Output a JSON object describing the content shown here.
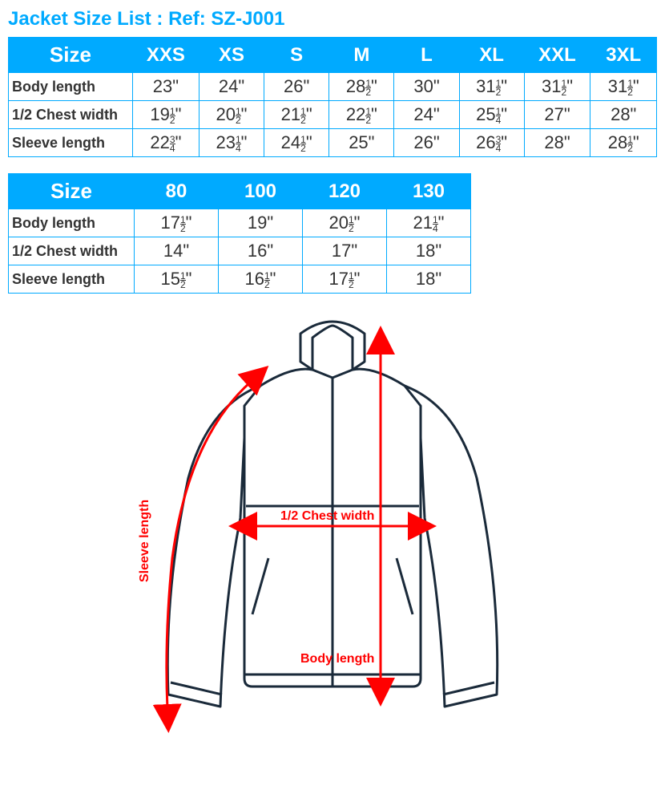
{
  "title": "Jacket Size List :   Ref:  SZ-J001",
  "colors": {
    "accent": "#00aaff",
    "text": "#333333",
    "arrow": "#ff0000",
    "outline": "#1a2a3a",
    "bg": "#ffffff"
  },
  "table1": {
    "size_label": "Size",
    "columns": [
      "XXS",
      "XS",
      "S",
      "M",
      "L",
      "XL",
      "XXL",
      "3XL"
    ],
    "rows": [
      {
        "label": "Body length",
        "cells": [
          {
            "w": "23"
          },
          {
            "w": "24"
          },
          {
            "w": "26"
          },
          {
            "w": "28",
            "f": "1/2"
          },
          {
            "w": "30"
          },
          {
            "w": "31",
            "f": "1/2"
          },
          {
            "w": "31",
            "f": "1/2"
          },
          {
            "w": "31",
            "f": "1/2"
          }
        ]
      },
      {
        "label": "1/2 Chest width",
        "cells": [
          {
            "w": "19",
            "f": "1/2"
          },
          {
            "w": "20",
            "f": "1/2"
          },
          {
            "w": "21",
            "f": "1/2"
          },
          {
            "w": "22",
            "f": "1/2"
          },
          {
            "w": "24"
          },
          {
            "w": "25",
            "f": "1/4"
          },
          {
            "w": "27"
          },
          {
            "w": "28"
          }
        ]
      },
      {
        "label": "Sleeve length",
        "cells": [
          {
            "w": "22",
            "f": "3/4"
          },
          {
            "w": "23",
            "f": "1/4"
          },
          {
            "w": "24",
            "f": "1/2"
          },
          {
            "w": "25"
          },
          {
            "w": "26"
          },
          {
            "w": "26",
            "f": "3/4"
          },
          {
            "w": "28"
          },
          {
            "w": "28",
            "f": "1/2"
          }
        ]
      }
    ]
  },
  "table2": {
    "size_label": "Size",
    "columns": [
      "80",
      "100",
      "120",
      "130"
    ],
    "rows": [
      {
        "label": "Body length",
        "cells": [
          {
            "w": "17",
            "f": "1/2"
          },
          {
            "w": "19"
          },
          {
            "w": "20",
            "f": "1/2"
          },
          {
            "w": "21",
            "f": "1/4"
          }
        ]
      },
      {
        "label": "1/2 Chest width",
        "cells": [
          {
            "w": "14"
          },
          {
            "w": "16"
          },
          {
            "w": "17"
          },
          {
            "w": "18"
          }
        ]
      },
      {
        "label": "Sleeve length",
        "cells": [
          {
            "w": "15",
            "f": "1/2"
          },
          {
            "w": "16",
            "f": "1/2"
          },
          {
            "w": "17",
            "f": "1/2"
          },
          {
            "w": "18"
          }
        ]
      }
    ]
  },
  "diagram": {
    "labels": {
      "sleeve": "Sleeve length",
      "chest": "1/2 Chest width",
      "body": "Body length"
    }
  }
}
